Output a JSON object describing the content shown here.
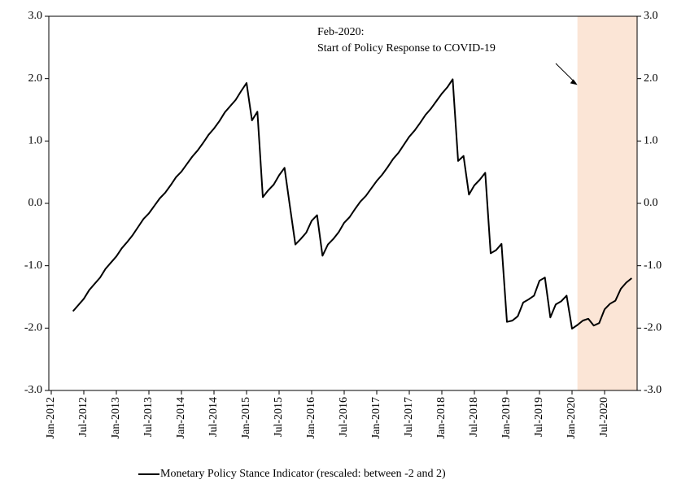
{
  "chart_data": {
    "type": "line",
    "x": [
      "May-2012",
      "Jun-2012",
      "Jul-2012",
      "Aug-2012",
      "Sep-2012",
      "Oct-2012",
      "Nov-2012",
      "Dec-2012",
      "Jan-2013",
      "Feb-2013",
      "Mar-2013",
      "Apr-2013",
      "May-2013",
      "Jun-2013",
      "Jul-2013",
      "Aug-2013",
      "Sep-2013",
      "Oct-2013",
      "Nov-2013",
      "Dec-2013",
      "Jan-2014",
      "Feb-2014",
      "Mar-2014",
      "Apr-2014",
      "May-2014",
      "Jun-2014",
      "Jul-2014",
      "Aug-2014",
      "Sep-2014",
      "Oct-2014",
      "Nov-2014",
      "Dec-2014",
      "Jan-2015",
      "Feb-2015",
      "Mar-2015",
      "Apr-2015",
      "May-2015",
      "Jun-2015",
      "Jul-2015",
      "Aug-2015",
      "Sep-2015",
      "Oct-2015",
      "Nov-2015",
      "Dec-2015",
      "Jan-2016",
      "Feb-2016",
      "Mar-2016",
      "Apr-2016",
      "May-2016",
      "Jun-2016",
      "Jul-2016",
      "Aug-2016",
      "Sep-2016",
      "Oct-2016",
      "Nov-2016",
      "Dec-2016",
      "Jan-2017",
      "Feb-2017",
      "Mar-2017",
      "Apr-2017",
      "May-2017",
      "Jun-2017",
      "Jul-2017",
      "Aug-2017",
      "Sep-2017",
      "Oct-2017",
      "Nov-2017",
      "Dec-2017",
      "Jan-2018",
      "Feb-2018",
      "Mar-2018",
      "Apr-2018",
      "May-2018",
      "Jun-2018",
      "Jul-2018",
      "Aug-2018",
      "Sep-2018",
      "Oct-2018",
      "Nov-2018",
      "Dec-2018",
      "Jan-2019",
      "Feb-2019",
      "Mar-2019",
      "Apr-2019",
      "May-2019",
      "Jun-2019",
      "Jul-2019",
      "Aug-2019",
      "Sep-2019",
      "Oct-2019",
      "Nov-2019",
      "Dec-2019",
      "Jan-2020",
      "Feb-2020",
      "Mar-2020",
      "Apr-2020",
      "May-2020",
      "Jun-2020",
      "Jul-2020",
      "Aug-2020",
      "Sep-2020",
      "Oct-2020",
      "Nov-2020",
      "Dec-2020"
    ],
    "series": [
      {
        "name": "Monetary Policy Stance Indicator (rescaled: between -2 and 2)",
        "color": "#000000",
        "values": [
          -1.73,
          -1.63,
          -1.53,
          -1.39,
          -1.29,
          -1.19,
          -1.05,
          -0.95,
          -0.85,
          -0.72,
          -0.62,
          -0.51,
          -0.38,
          -0.25,
          -0.16,
          -0.04,
          0.08,
          0.17,
          0.29,
          0.42,
          0.51,
          0.63,
          0.75,
          0.85,
          0.97,
          1.1,
          1.2,
          1.32,
          1.46,
          1.56,
          1.66,
          1.8,
          1.93,
          1.33,
          1.47,
          0.1,
          0.21,
          0.3,
          0.45,
          0.57,
          -0.05,
          -0.66,
          -0.57,
          -0.47,
          -0.28,
          -0.19,
          -0.84,
          -0.66,
          -0.57,
          -0.46,
          -0.31,
          -0.22,
          -0.09,
          0.03,
          0.12,
          0.24,
          0.36,
          0.46,
          0.58,
          0.71,
          0.81,
          0.94,
          1.07,
          1.17,
          1.29,
          1.42,
          1.52,
          1.64,
          1.76,
          1.86,
          1.99,
          0.68,
          0.76,
          0.14,
          0.29,
          0.38,
          0.49,
          -0.8,
          -0.75,
          -0.65,
          -1.9,
          -1.88,
          -1.81,
          -1.59,
          -1.54,
          -1.48,
          -1.24,
          -1.19,
          -1.83,
          -1.62,
          -1.57,
          -1.48,
          -2.01,
          -1.95,
          -1.88,
          -1.85,
          -1.96,
          -1.92,
          -1.7,
          -1.61,
          -1.56,
          -1.37,
          -1.27,
          -1.2
        ]
      }
    ],
    "xlim": [
      "Jan-2012",
      "Jan-2021"
    ],
    "xticks": [
      "Jan-2012",
      "Jul-2012",
      "Jan-2013",
      "Jul-2013",
      "Jan-2014",
      "Jul-2014",
      "Jan-2015",
      "Jul-2015",
      "Jan-2016",
      "Jul-2016",
      "Jan-2017",
      "Jul-2017",
      "Jan-2018",
      "Jul-2018",
      "Jan-2019",
      "Jul-2019",
      "Jan-2020",
      "Jul-2020"
    ],
    "ylim": [
      -3,
      3
    ],
    "yticks": [
      {
        "value": -3,
        "label": "-3.0"
      },
      {
        "value": -2,
        "label": "-2.0"
      },
      {
        "value": -1,
        "label": "-1.0"
      },
      {
        "value": 0,
        "label": "0.0"
      },
      {
        "value": 1,
        "label": "1.0"
      },
      {
        "value": 2,
        "label": "2.0"
      },
      {
        "value": 3,
        "label": "3.0"
      }
    ],
    "y2lim": [
      -3,
      3
    ],
    "y2ticks": [
      {
        "value": -3,
        "label": "-3.0"
      },
      {
        "value": -2,
        "label": "-2.0"
      },
      {
        "value": -1,
        "label": "-1.0"
      },
      {
        "value": 0,
        "label": "0.0"
      },
      {
        "value": 1,
        "label": "1.0"
      },
      {
        "value": 2,
        "label": "2.0"
      },
      {
        "value": 3,
        "label": "3.0"
      }
    ],
    "highlight": {
      "start": "Feb-2020",
      "end": "Jan-2021",
      "color": "#fbe5d6"
    },
    "annotation": {
      "lines": [
        "Feb-2020:",
        "Start of Policy Response to COVID-19"
      ],
      "x": "Feb-2020",
      "y": 1.9
    },
    "legend": "bottom"
  }
}
